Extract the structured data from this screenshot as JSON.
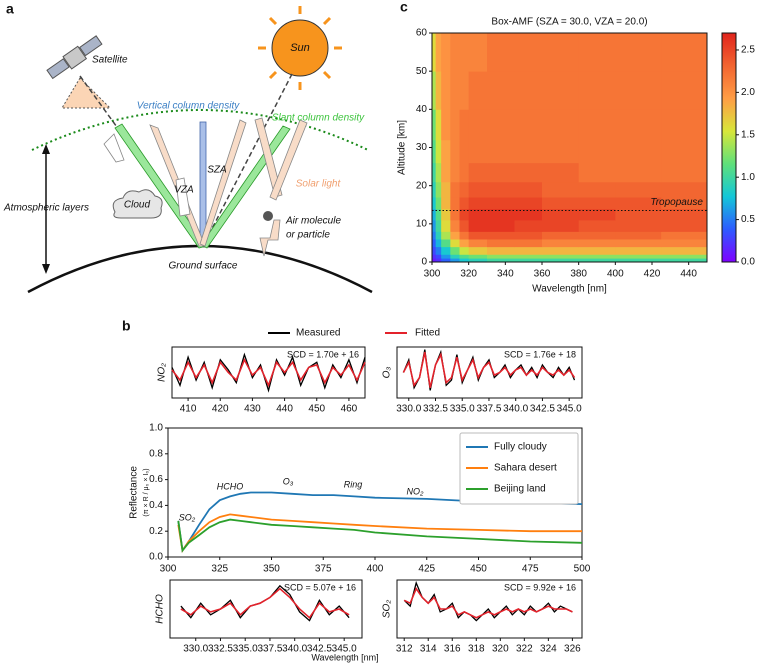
{
  "diagram": {
    "label": "a",
    "satellite": "Satellite",
    "sun": "Sun",
    "vertical_column_density": "Vertical column density",
    "slant_column_density": "Slant column density",
    "solar_light": "Solar light",
    "cloud": "Cloud",
    "vza": "VZA",
    "sza": "SZA",
    "air_molecule": [
      "Air molecule",
      "or particle"
    ],
    "atmospheric_layers": "Atmospheric layers",
    "ground_surface": "Ground surface"
  },
  "panel_b": {
    "label": "b",
    "legend": [
      {
        "name": "Measured",
        "color": "#000000"
      },
      {
        "name": "Fitted",
        "color": "#e3222b"
      }
    ]
  },
  "chart_data": [
    {
      "type": "heatmap",
      "panel_label": "c",
      "title": "Box-AMF (SZA = 30.0, VZA = 20.0)",
      "xlabel": "Wavelength [nm]",
      "ylabel": "Altitude [km]",
      "xbins": [
        300,
        302,
        305,
        310,
        315,
        320,
        330,
        345,
        360,
        380,
        400,
        425,
        450
      ],
      "ybins": [
        0,
        1,
        2,
        4,
        6,
        8,
        11,
        14,
        17,
        21,
        26,
        32,
        40,
        50,
        60
      ],
      "values": [
        [
          0.1,
          0.2,
          0.4,
          0.6,
          0.8,
          0.9,
          1.0,
          1.0,
          1.0,
          1.0,
          1.0,
          1.0
        ],
        [
          0.2,
          0.3,
          0.6,
          0.9,
          1.1,
          1.2,
          1.3,
          1.3,
          1.3,
          1.3,
          1.3,
          1.3
        ],
        [
          0.3,
          0.5,
          0.8,
          1.2,
          1.5,
          1.7,
          1.8,
          1.8,
          1.8,
          1.8,
          1.8,
          1.8
        ],
        [
          0.4,
          0.7,
          1.1,
          1.6,
          1.9,
          2.1,
          2.2,
          2.2,
          2.1,
          2.1,
          2.1,
          2.1
        ],
        [
          0.5,
          0.9,
          1.4,
          1.9,
          2.2,
          2.4,
          2.4,
          2.4,
          2.3,
          2.3,
          2.3,
          2.2
        ],
        [
          0.6,
          1.0,
          1.6,
          2.1,
          2.4,
          2.6,
          2.6,
          2.5,
          2.5,
          2.4,
          2.4,
          2.4
        ],
        [
          0.7,
          1.1,
          1.7,
          2.2,
          2.5,
          2.6,
          2.6,
          2.6,
          2.5,
          2.5,
          2.4,
          2.4
        ],
        [
          0.8,
          1.2,
          1.8,
          2.2,
          2.4,
          2.5,
          2.5,
          2.5,
          2.4,
          2.4,
          2.4,
          2.3
        ],
        [
          0.9,
          1.3,
          1.8,
          2.2,
          2.3,
          2.4,
          2.4,
          2.4,
          2.3,
          2.3,
          2.3,
          2.3
        ],
        [
          1.0,
          1.4,
          1.9,
          2.1,
          2.2,
          2.3,
          2.3,
          2.3,
          2.3,
          2.2,
          2.2,
          2.2
        ],
        [
          1.1,
          1.5,
          1.9,
          2.1,
          2.2,
          2.2,
          2.2,
          2.2,
          2.2,
          2.2,
          2.2,
          2.2
        ],
        [
          1.2,
          1.6,
          2.0,
          2.1,
          2.2,
          2.2,
          2.2,
          2.2,
          2.2,
          2.2,
          2.2,
          2.2
        ],
        [
          1.4,
          1.8,
          2.0,
          2.1,
          2.1,
          2.2,
          2.2,
          2.2,
          2.2,
          2.2,
          2.2,
          2.2
        ],
        [
          1.6,
          1.9,
          2.0,
          2.1,
          2.1,
          2.1,
          2.2,
          2.2,
          2.2,
          2.2,
          2.2,
          2.2
        ]
      ],
      "xlim": [
        300,
        450
      ],
      "ylim": [
        0,
        60
      ],
      "xticks": [
        300,
        320,
        340,
        360,
        380,
        400,
        420,
        440
      ],
      "yticks": [
        0,
        10,
        20,
        30,
        40,
        50,
        60
      ],
      "clim": [
        0,
        2.7
      ],
      "cticks": [
        {
          "value": 0,
          "label": "0.0"
        },
        0.5,
        {
          "value": 1,
          "label": "1.0"
        },
        1.5,
        {
          "value": 2,
          "label": "2.0"
        },
        2.5
      ],
      "colormap": [
        "#7f00ff",
        "#2d5bff",
        "#13c7d8",
        "#5fe07a",
        "#d8e63a",
        "#ff9d45",
        "#f26430",
        "#e0241c"
      ],
      "annotation": "Tropopause",
      "tropopause_altitude": 13.5
    },
    {
      "type": "fit",
      "ylabel": "NO₂",
      "annotation": "SCD = 1.70e + 16",
      "x": [
        405,
        407.5,
        410,
        412.5,
        415,
        417.5,
        420,
        422.5,
        425,
        427.5,
        430,
        432.5,
        435,
        437.5,
        440,
        442.5,
        445,
        447.5,
        450,
        452.5,
        455,
        457.5,
        460,
        462.5,
        465
      ],
      "measured": [
        0.2,
        -0.5,
        0.6,
        -0.3,
        0.4,
        -0.6,
        0.5,
        0.1,
        -0.4,
        0.7,
        -0.2,
        0.3,
        -0.7,
        0.5,
        -0.1,
        0.6,
        -0.5,
        0.2,
        0.4,
        -0.6,
        0.3,
        -0.2,
        0.5,
        -0.4,
        0.6
      ],
      "fitted": [
        0.1,
        -0.3,
        0.4,
        -0.2,
        0.3,
        -0.4,
        0.4,
        0.0,
        -0.3,
        0.5,
        -0.1,
        0.2,
        -0.5,
        0.4,
        0.0,
        0.4,
        -0.3,
        0.2,
        0.3,
        -0.4,
        0.2,
        -0.1,
        0.3,
        -0.3,
        0.4
      ],
      "xlim": [
        405,
        465
      ],
      "ylim": [
        -1,
        1
      ],
      "xticks": [
        410,
        420,
        430,
        440,
        450,
        460
      ]
    },
    {
      "type": "fit",
      "ylabel": "O₃",
      "annotation": "SCD = 1.76e + 18",
      "x": [
        329.5,
        330,
        330.5,
        331,
        331.5,
        332,
        332.5,
        333,
        333.5,
        334,
        334.5,
        335,
        335.5,
        336,
        336.5,
        337,
        337.5,
        338,
        338.5,
        339,
        339.5,
        340,
        340.5,
        341,
        341.5,
        342,
        342.5,
        343,
        343.5,
        344,
        344.5,
        345,
        345.5
      ],
      "measured": [
        0.0,
        0.5,
        -0.6,
        -0.2,
        0.9,
        -0.7,
        0.3,
        0.8,
        -0.5,
        -0.3,
        0.7,
        -0.4,
        0.1,
        0.6,
        -0.3,
        0.2,
        0.5,
        -0.2,
        0.0,
        0.3,
        -0.2,
        0.1,
        0.3,
        -0.1,
        0.2,
        -0.2,
        0.3,
        0.0,
        -0.2,
        0.2,
        -0.1,
        0.2,
        -0.3
      ],
      "fitted": [
        0.0,
        0.4,
        -0.5,
        -0.2,
        0.8,
        -0.6,
        0.3,
        0.7,
        -0.4,
        -0.2,
        0.6,
        -0.3,
        0.1,
        0.5,
        -0.2,
        0.2,
        0.4,
        -0.1,
        0.0,
        0.2,
        -0.1,
        0.1,
        0.2,
        -0.1,
        0.1,
        -0.1,
        0.2,
        0.0,
        -0.1,
        0.1,
        -0.1,
        0.1,
        -0.2
      ],
      "xlim": [
        328.9,
        346.2
      ],
      "ylim": [
        -1,
        1
      ],
      "xticks": [
        {
          "value": 330,
          "label": "330.0"
        },
        332.5,
        {
          "value": 335,
          "label": "335.0"
        },
        337.5,
        {
          "value": 340,
          "label": "340.0"
        },
        342.5,
        {
          "value": 345,
          "label": "345.0"
        }
      ]
    },
    {
      "type": "line",
      "ylabel": "Reflectance",
      "ylabel_formula": "(π × R / μ₀ × I₀)",
      "legend": "upper right",
      "annotations": [
        "HCHO",
        "O₃",
        "Ring",
        "NO₂",
        "SO₂"
      ],
      "x": [
        305,
        307,
        310,
        315,
        320,
        325,
        330,
        335,
        340,
        350,
        360,
        370,
        380,
        390,
        400,
        425,
        450,
        475,
        500
      ],
      "series": [
        {
          "name": "Fully cloudy",
          "color": "#1f77b4",
          "values": [
            0.28,
            0.05,
            0.12,
            0.25,
            0.37,
            0.44,
            0.47,
            0.49,
            0.5,
            0.5,
            0.49,
            0.48,
            0.48,
            0.47,
            0.46,
            0.45,
            0.43,
            0.42,
            0.41
          ]
        },
        {
          "name": "Sahara desert",
          "color": "#ff7f0e",
          "values": [
            0.25,
            0.05,
            0.12,
            0.2,
            0.27,
            0.31,
            0.33,
            0.32,
            0.31,
            0.29,
            0.28,
            0.27,
            0.26,
            0.25,
            0.24,
            0.22,
            0.21,
            0.2,
            0.2
          ]
        },
        {
          "name": "Beijing land",
          "color": "#2ca02c",
          "values": [
            0.28,
            0.05,
            0.11,
            0.17,
            0.23,
            0.27,
            0.29,
            0.28,
            0.27,
            0.25,
            0.24,
            0.23,
            0.22,
            0.21,
            0.19,
            0.16,
            0.14,
            0.12,
            0.11
          ]
        }
      ],
      "xlim": [
        300,
        500
      ],
      "ylim": [
        0,
        1
      ],
      "xticks": [
        300,
        325,
        350,
        375,
        400,
        425,
        450,
        475,
        500
      ],
      "yticks": [
        {
          "value": 0,
          "label": "0.0"
        },
        0.2,
        0.4,
        0.6,
        0.8,
        {
          "value": 1,
          "label": "1.0"
        }
      ]
    },
    {
      "type": "fit",
      "ylabel": "HCHO",
      "annotation": "SCD = 5.07e + 16",
      "xlabel": "Wavelength [nm]",
      "x": [
        328.5,
        329.5,
        330.5,
        331.5,
        332.5,
        333.5,
        334.5,
        335.5,
        336.5,
        337.5,
        338.5,
        339.5,
        340.5,
        341.5,
        342.5,
        343.5,
        344.5,
        345.5
      ],
      "measured": [
        0.1,
        -0.3,
        0.2,
        -0.2,
        0.0,
        0.3,
        -0.3,
        0.1,
        0.2,
        0.4,
        0.8,
        0.5,
        -0.1,
        -0.4,
        0.3,
        -0.2,
        0.1,
        -0.3
      ],
      "fitted": [
        0.0,
        -0.2,
        0.1,
        -0.1,
        0.0,
        0.2,
        -0.2,
        0.1,
        0.2,
        0.4,
        0.7,
        0.4,
        0.0,
        -0.3,
        0.2,
        -0.1,
        0.0,
        -0.2
      ],
      "xlim": [
        327.4,
        346.8
      ],
      "ylim": [
        -1,
        1
      ],
      "xticks": [
        {
          "value": 330,
          "label": "330.0"
        },
        332.5,
        {
          "value": 335,
          "label": "335.0"
        },
        337.5,
        {
          "value": 340,
          "label": "340.0"
        },
        342.5,
        {
          "value": 345,
          "label": "345.0"
        }
      ]
    },
    {
      "type": "fit",
      "ylabel": "SO₂",
      "annotation": "SCD = 9.92e + 16",
      "x": [
        312,
        312.5,
        313,
        313.5,
        314,
        314.5,
        315,
        315.5,
        316,
        316.5,
        317,
        317.5,
        318,
        318.5,
        319,
        319.5,
        320,
        320.5,
        321,
        321.5,
        322,
        322.5,
        323,
        323.5,
        324,
        324.5,
        325,
        325.5,
        326
      ],
      "measured": [
        0.3,
        0.1,
        0.9,
        0.4,
        0.2,
        0.5,
        -0.1,
        0.0,
        0.2,
        -0.3,
        -0.1,
        -0.2,
        -0.4,
        -0.2,
        0.0,
        -0.3,
        -0.1,
        0.1,
        -0.2,
        0.0,
        -0.2,
        0.1,
        -0.1,
        0.0,
        0.2,
        -0.1,
        0.1,
        0.0,
        -0.1
      ],
      "fitted": [
        0.3,
        0.2,
        0.7,
        0.4,
        0.2,
        0.4,
        0.0,
        0.0,
        0.1,
        -0.2,
        -0.1,
        -0.2,
        -0.3,
        -0.2,
        -0.1,
        -0.2,
        -0.1,
        0.0,
        -0.1,
        0.0,
        -0.1,
        0.0,
        -0.1,
        0.0,
        0.1,
        0.0,
        0.0,
        0.0,
        -0.1
      ],
      "xlim": [
        311.4,
        326.8
      ],
      "ylim": [
        -1,
        1
      ],
      "xticks": [
        312,
        314,
        316,
        318,
        320,
        322,
        324,
        326
      ]
    }
  ]
}
